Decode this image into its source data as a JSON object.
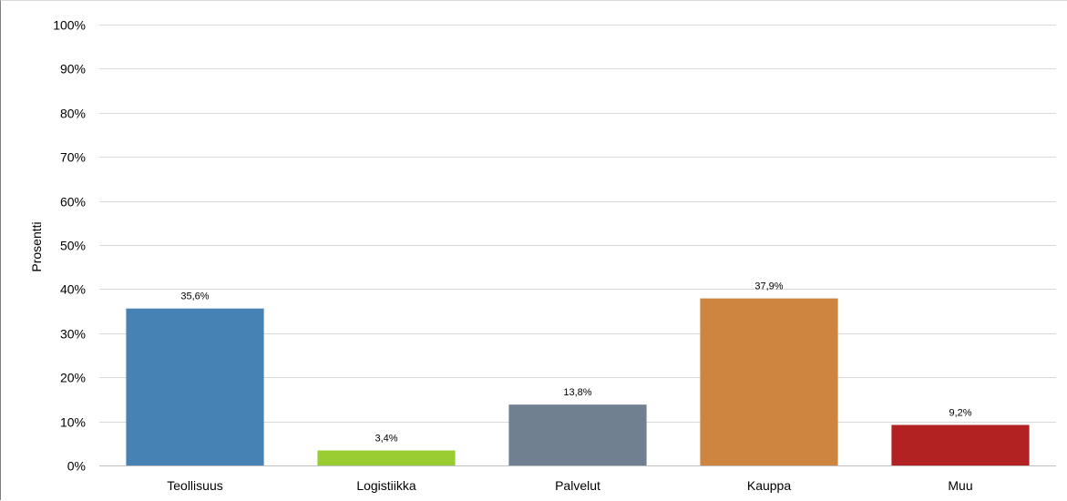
{
  "chart_data": {
    "type": "bar",
    "title": "",
    "xlabel": "",
    "ylabel": "Prosentti",
    "categories": [
      "Teollisuus",
      "Logistiikka",
      "Palvelut",
      "Kauppa",
      "Muu"
    ],
    "values": [
      35.6,
      3.4,
      13.8,
      37.9,
      9.2
    ],
    "data_labels": [
      "35,6%",
      "3,4%",
      "13,8%",
      "37,9%",
      "9,2%"
    ],
    "colors": [
      "#4682b4",
      "#9acd32",
      "#708090",
      "#cd853f",
      "#b22222"
    ],
    "ylim": [
      0,
      100
    ],
    "yticks": [
      0,
      10,
      20,
      30,
      40,
      50,
      60,
      70,
      80,
      90,
      100
    ],
    "ytick_labels": [
      "0%",
      "10%",
      "20%",
      "30%",
      "40%",
      "50%",
      "60%",
      "70%",
      "80%",
      "90%",
      "100%"
    ],
    "grid": true,
    "legend": "none",
    "gridline_color": "#d9d9d9",
    "axis_color": "#bfbfbf"
  }
}
